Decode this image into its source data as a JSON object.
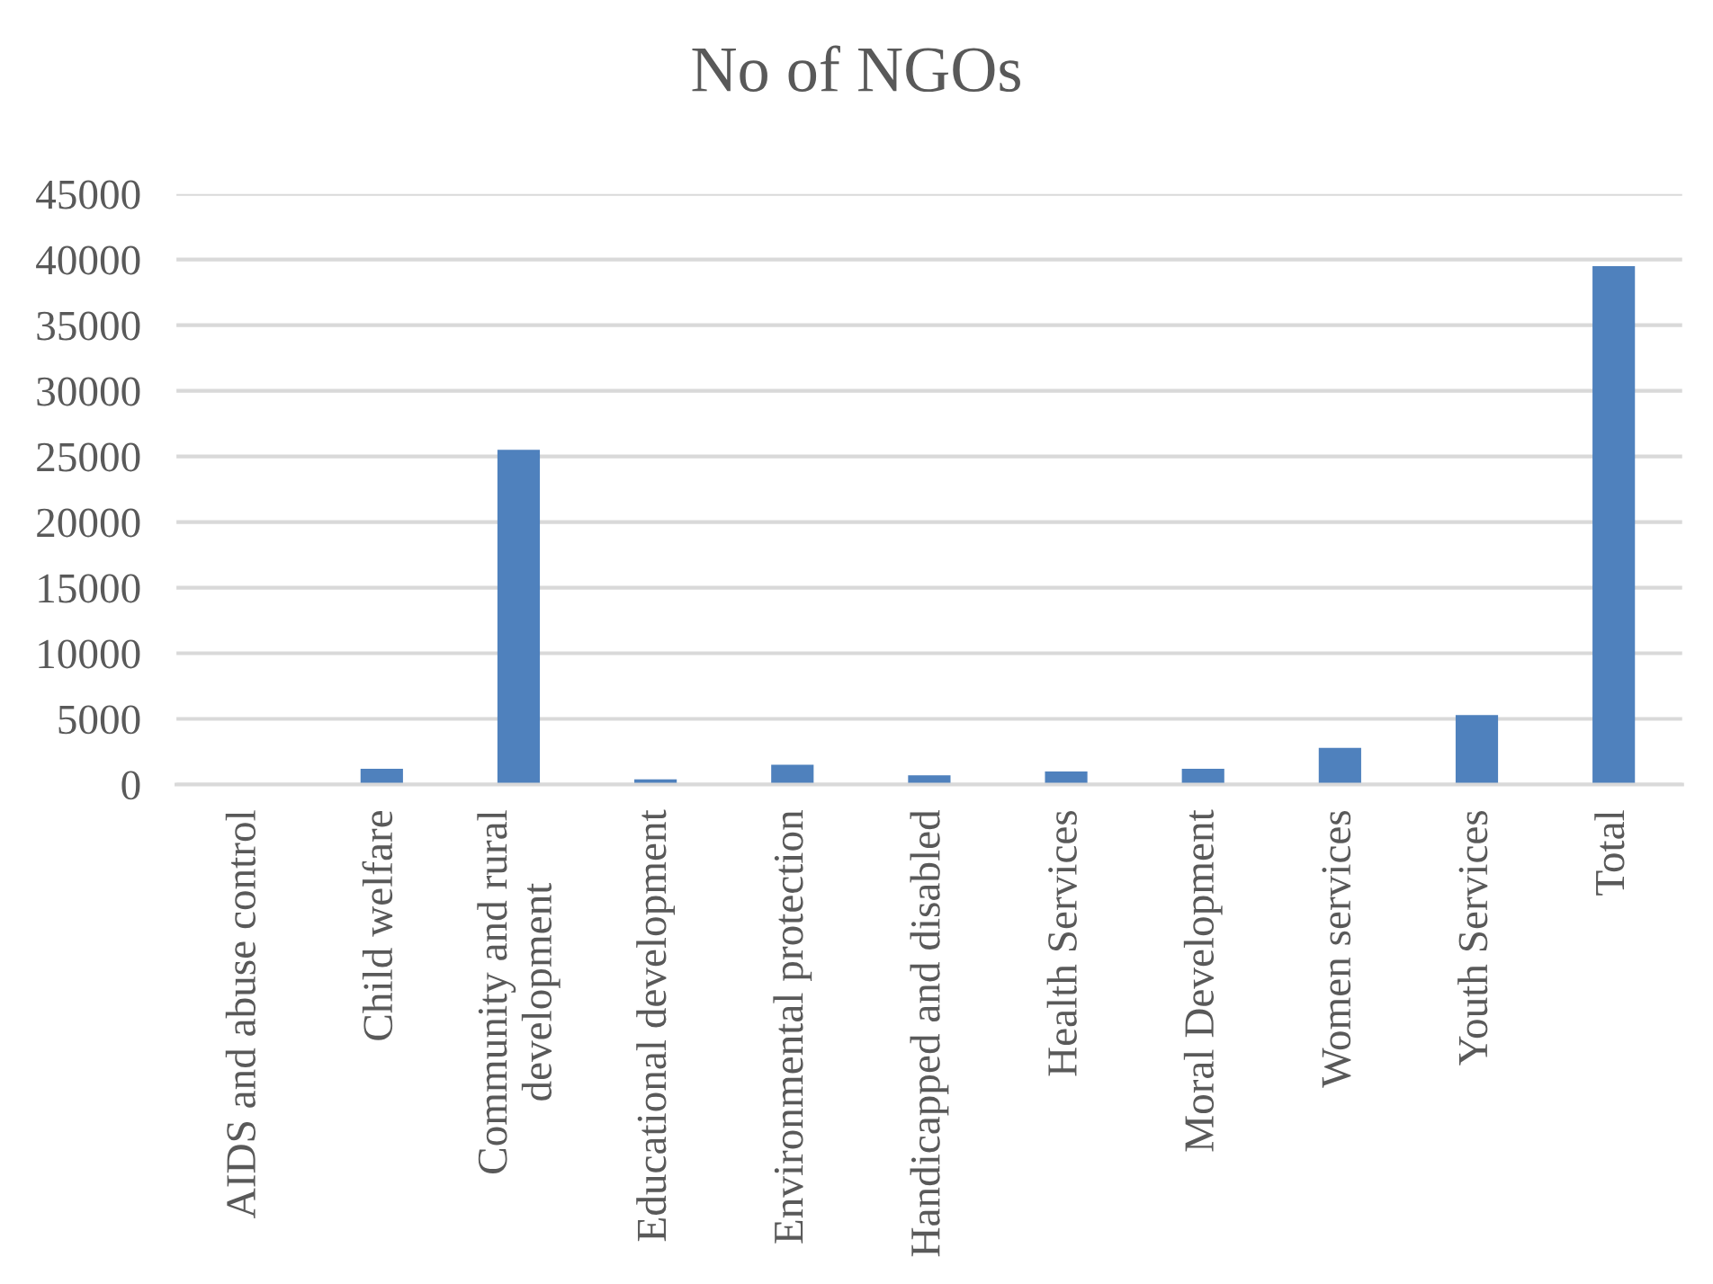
{
  "chart_data": {
    "type": "bar",
    "title": "No of NGOs",
    "categories": [
      "AIDS and abuse control",
      "Child welfare",
      "Community and rural development",
      "Educational development",
      "Environmental protection",
      "Handicapped and disabled",
      "Health Services",
      "Moral Development",
      "Women services",
      "Youth Services",
      "Total"
    ],
    "values": [
      0,
      1200,
      25500,
      400,
      1500,
      700,
      1000,
      1200,
      2800,
      5300,
      39500
    ],
    "color": "#4f81bd",
    "ylim": [
      0,
      45000
    ],
    "yticks": [
      0,
      5000,
      10000,
      15000,
      20000,
      25000,
      30000,
      35000,
      40000,
      45000
    ],
    "grid": "y"
  }
}
